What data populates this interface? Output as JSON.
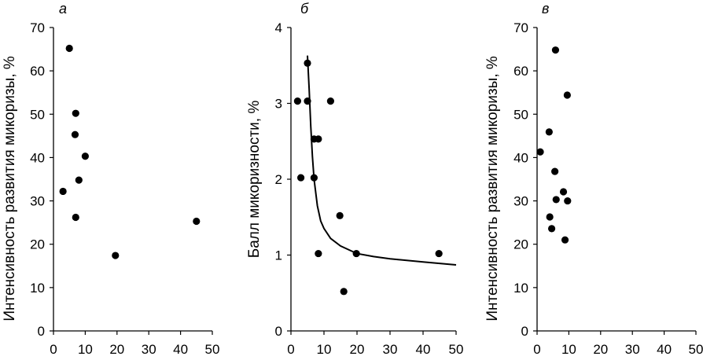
{
  "chart_data": [
    {
      "type": "scatter",
      "panel_label": "а",
      "xlabel": "",
      "ylabel": "Интенсивность развития микоризы, %",
      "xlim": [
        0,
        50
      ],
      "ylim": [
        0,
        70
      ],
      "x_ticks": [
        0,
        10,
        20,
        30,
        40,
        50
      ],
      "y_ticks": [
        0,
        10,
        20,
        30,
        40,
        50,
        60,
        70
      ],
      "points": [
        {
          "x": 5,
          "y": 65.2
        },
        {
          "x": 7,
          "y": 50.2
        },
        {
          "x": 6.8,
          "y": 45.3
        },
        {
          "x": 10,
          "y": 40.3
        },
        {
          "x": 8,
          "y": 34.8
        },
        {
          "x": 3,
          "y": 32.2
        },
        {
          "x": 7,
          "y": 26.2
        },
        {
          "x": 45,
          "y": 25.3
        },
        {
          "x": 19.5,
          "y": 17.4
        }
      ]
    },
    {
      "type": "scatter",
      "panel_label": "б",
      "xlabel": "",
      "ylabel": "Балл микоризности, %",
      "xlim": [
        0,
        50
      ],
      "ylim": [
        0,
        4
      ],
      "x_ticks": [
        0,
        10,
        20,
        30,
        40,
        50
      ],
      "y_ticks": [
        0,
        1,
        2,
        3,
        4
      ],
      "points": [
        {
          "x": 5,
          "y": 3.53
        },
        {
          "x": 2,
          "y": 3.03
        },
        {
          "x": 5,
          "y": 3.03
        },
        {
          "x": 12,
          "y": 3.03
        },
        {
          "x": 7,
          "y": 2.53
        },
        {
          "x": 8.3,
          "y": 2.53
        },
        {
          "x": 3,
          "y": 2.02
        },
        {
          "x": 7,
          "y": 2.02
        },
        {
          "x": 14.8,
          "y": 1.52
        },
        {
          "x": 8.3,
          "y": 1.02
        },
        {
          "x": 19.8,
          "y": 1.02
        },
        {
          "x": 44.8,
          "y": 1.02
        },
        {
          "x": 16,
          "y": 0.52
        }
      ],
      "trend_curve": {
        "description": "fitted curve",
        "points": [
          [
            5,
            3.63
          ],
          [
            5.5,
            3.2
          ],
          [
            6,
            2.7
          ],
          [
            6.5,
            2.3
          ],
          [
            7,
            2.0
          ],
          [
            8,
            1.65
          ],
          [
            9,
            1.45
          ],
          [
            10,
            1.35
          ],
          [
            12,
            1.22
          ],
          [
            15,
            1.12
          ],
          [
            20,
            1.02
          ],
          [
            25,
            0.98
          ],
          [
            30,
            0.95
          ],
          [
            40,
            0.91
          ],
          [
            50,
            0.87
          ]
        ]
      }
    },
    {
      "type": "scatter",
      "panel_label": "в",
      "xlabel": "",
      "ylabel": "Интенсивность развития микоризы, %",
      "xlim": [
        0,
        50
      ],
      "ylim": [
        0,
        70
      ],
      "x_ticks": [
        0,
        10,
        20,
        30,
        40,
        50
      ],
      "y_ticks": [
        0,
        10,
        20,
        30,
        40,
        50,
        60,
        70
      ],
      "points": [
        {
          "x": 5.8,
          "y": 64.8
        },
        {
          "x": 9.5,
          "y": 54.4
        },
        {
          "x": 3.8,
          "y": 45.9
        },
        {
          "x": 1,
          "y": 41.3
        },
        {
          "x": 5.6,
          "y": 36.8
        },
        {
          "x": 8.3,
          "y": 32.1
        },
        {
          "x": 6,
          "y": 30.3
        },
        {
          "x": 9.6,
          "y": 30.0
        },
        {
          "x": 4,
          "y": 26.3
        },
        {
          "x": 4.6,
          "y": 23.6
        },
        {
          "x": 8.8,
          "y": 21.0
        }
      ]
    }
  ]
}
